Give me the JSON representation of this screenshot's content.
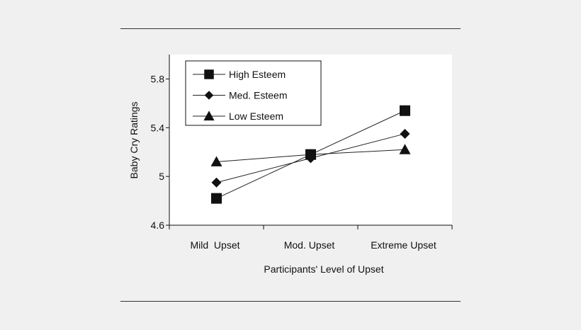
{
  "chart_data": {
    "type": "line",
    "categories": [
      "Mild  Upset",
      "Mod. Upset",
      "Extreme Upset"
    ],
    "ylabel": "Baby Cry Ratings",
    "xlabel": "Participants' Level of Upset",
    "ylim": [
      4.6,
      6.0
    ],
    "yticks": [
      "4.6",
      "5",
      "5.4",
      "5.8"
    ],
    "ytick_values": [
      4.6,
      5.0,
      5.4,
      5.8
    ],
    "grid": false,
    "legend_position": "top-left",
    "series": [
      {
        "name": "High Esteem",
        "marker": "square",
        "values": [
          4.82,
          5.18,
          5.54
        ]
      },
      {
        "name": "Med. Esteem",
        "marker": "diamond",
        "values": [
          4.95,
          5.15,
          5.35
        ]
      },
      {
        "name": "Low Esteem",
        "marker": "triangle",
        "values": [
          5.12,
          5.18,
          5.22
        ]
      }
    ],
    "line_color": "#222222",
    "marker_color": "#111111"
  }
}
